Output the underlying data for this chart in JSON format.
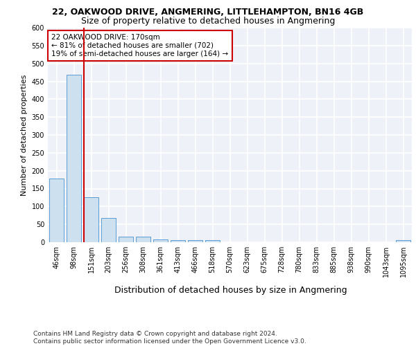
{
  "title1": "22, OAKWOOD DRIVE, ANGMERING, LITTLEHAMPTON, BN16 4GB",
  "title2": "Size of property relative to detached houses in Angmering",
  "xlabel": "Distribution of detached houses by size in Angmering",
  "ylabel": "Number of detached properties",
  "categories": [
    "46sqm",
    "98sqm",
    "151sqm",
    "203sqm",
    "256sqm",
    "308sqm",
    "361sqm",
    "413sqm",
    "466sqm",
    "518sqm",
    "570sqm",
    "623sqm",
    "675sqm",
    "728sqm",
    "780sqm",
    "833sqm",
    "885sqm",
    "938sqm",
    "990sqm",
    "1043sqm",
    "1095sqm"
  ],
  "values": [
    178,
    468,
    125,
    68,
    16,
    15,
    8,
    6,
    5,
    5,
    0,
    0,
    0,
    0,
    0,
    0,
    0,
    0,
    0,
    0,
    5
  ],
  "bar_color": "#cce0f0",
  "bar_edge_color": "#5b9bd5",
  "vline_index": 2,
  "vline_color": "#cc0000",
  "annotation_text": "22 OAKWOOD DRIVE: 170sqm\n← 81% of detached houses are smaller (702)\n19% of semi-detached houses are larger (164) →",
  "annotation_box_color": "white",
  "annotation_box_edge": "#cc0000",
  "ylim": [
    0,
    600
  ],
  "yticks": [
    0,
    50,
    100,
    150,
    200,
    250,
    300,
    350,
    400,
    450,
    500,
    550,
    600
  ],
  "footnote": "Contains HM Land Registry data © Crown copyright and database right 2024.\nContains public sector information licensed under the Open Government Licence v3.0.",
  "background_color": "#eef2f8",
  "grid_color": "#ffffff",
  "title1_fontsize": 9,
  "title2_fontsize": 9,
  "xlabel_fontsize": 9,
  "ylabel_fontsize": 8,
  "tick_fontsize": 7,
  "annotation_fontsize": 7.5,
  "footnote_fontsize": 6.5
}
